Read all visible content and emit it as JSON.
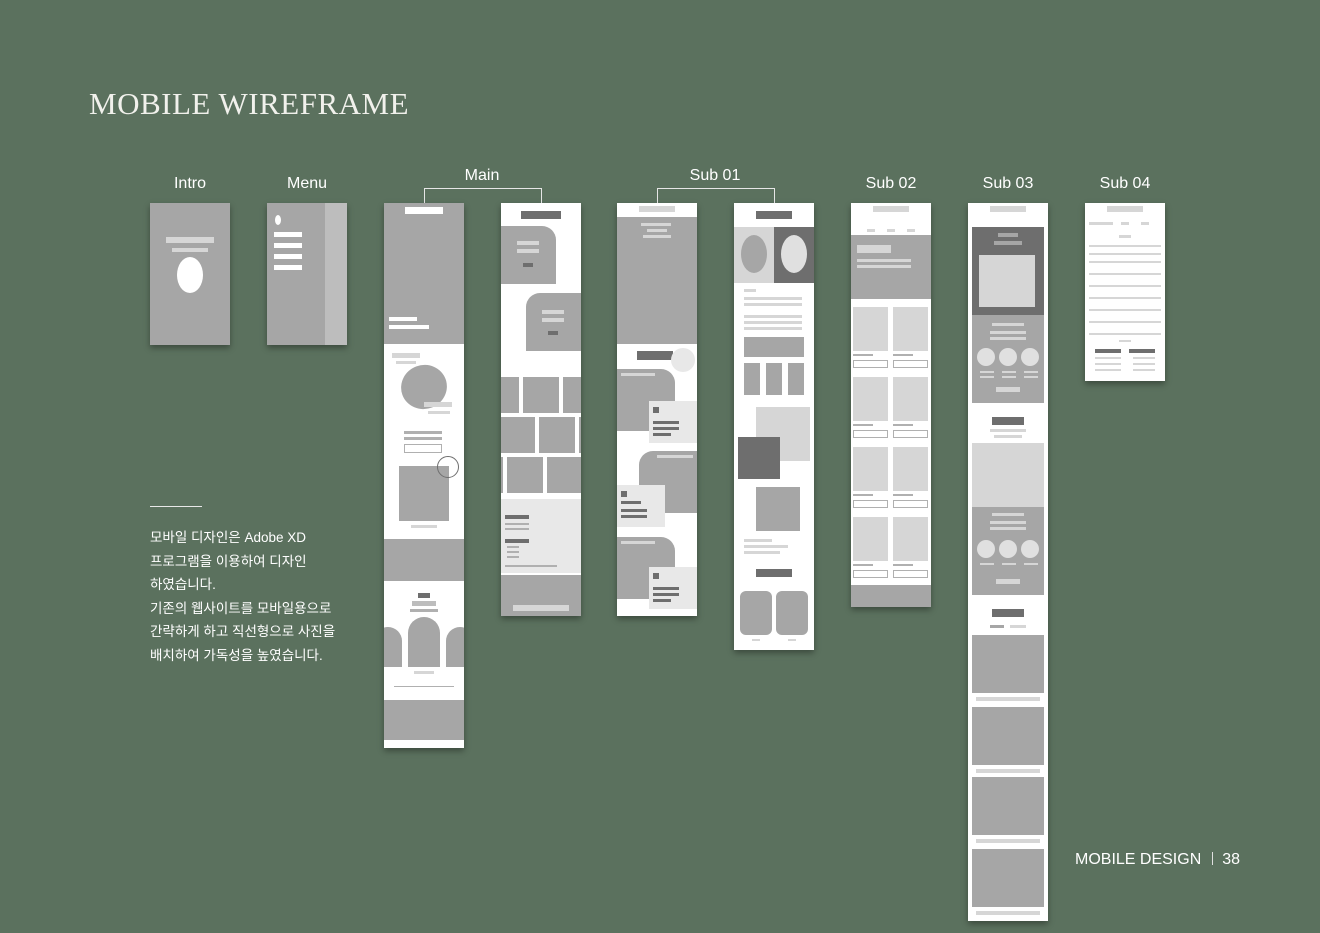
{
  "title": "MOBILE WIREFRAME",
  "labels": {
    "intro": "Intro",
    "menu": "Menu",
    "main": "Main",
    "sub01": "Sub 01",
    "sub02": "Sub 02",
    "sub03": "Sub 03",
    "sub04": "Sub 04"
  },
  "description": [
    "모바일 디자인은 Adobe XD",
    "프로그램을 이용하여 디자인",
    "하였습니다.",
    "기존의 웹사이트를 모바일용으로",
    "간략하게 하고 직선형으로 사진을",
    "배치하여 가독성을 높였습니다."
  ],
  "footer": {
    "label": "MOBILE DESIGN",
    "page": "38"
  },
  "colors": {
    "background": "#5b715e",
    "wire_gray": "#a6a6a6",
    "wire_dark": "#6e6e6e",
    "frame": "#ffffff"
  }
}
